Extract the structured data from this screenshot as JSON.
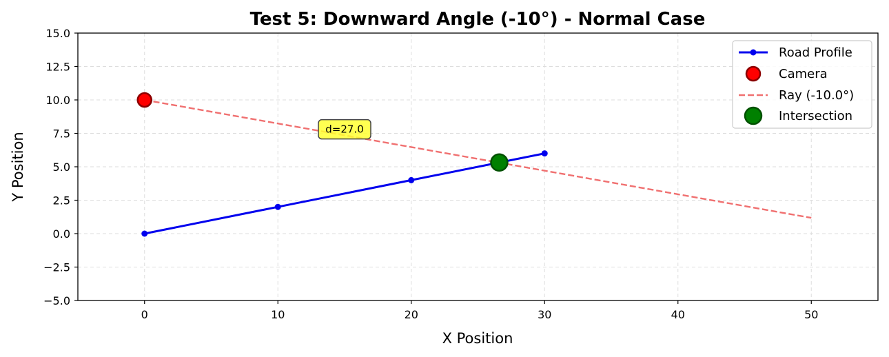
{
  "chart_data": {
    "type": "line",
    "title": "Test 5: Downward Angle (-10°) - Normal Case",
    "xlabel": "X Position",
    "ylabel": "Y Position",
    "xlim": [
      -5,
      55
    ],
    "ylim": [
      -5,
      15
    ],
    "xticks": [
      0,
      10,
      20,
      30,
      40,
      50
    ],
    "yticks": [
      -5.0,
      -2.5,
      0.0,
      2.5,
      5.0,
      7.5,
      10.0,
      12.5,
      15.0
    ],
    "xtick_labels": [
      "0",
      "10",
      "20",
      "30",
      "40",
      "50"
    ],
    "ytick_labels": [
      "−5.0",
      "−2.5",
      "0.0",
      "2.5",
      "5.0",
      "7.5",
      "10.0",
      "12.5",
      "15.0"
    ],
    "grid": true,
    "legend_position": "top-right",
    "series": [
      {
        "name": "Road Profile",
        "kind": "line-with-markers",
        "color": "#0000ee",
        "x": [
          0,
          10,
          20,
          30
        ],
        "y": [
          0,
          2,
          4,
          6
        ]
      },
      {
        "name": "Camera",
        "kind": "marker",
        "color": "#ff0000",
        "edge_color": "#8b0000",
        "x": [
          0
        ],
        "y": [
          10
        ]
      },
      {
        "name": "Ray (-10.0°)",
        "kind": "dashed-line",
        "color": "#f07070",
        "x": [
          0,
          50
        ],
        "y": [
          10,
          1.18
        ]
      },
      {
        "name": "Intersection",
        "kind": "marker",
        "color": "#008000",
        "edge_color": "#005000",
        "x": [
          26.6
        ],
        "y": [
          5.32
        ]
      }
    ],
    "annotations": [
      {
        "text": "d=27.0",
        "x": 15.0,
        "y": 7.8,
        "box_color": "#ffff33"
      }
    ]
  }
}
